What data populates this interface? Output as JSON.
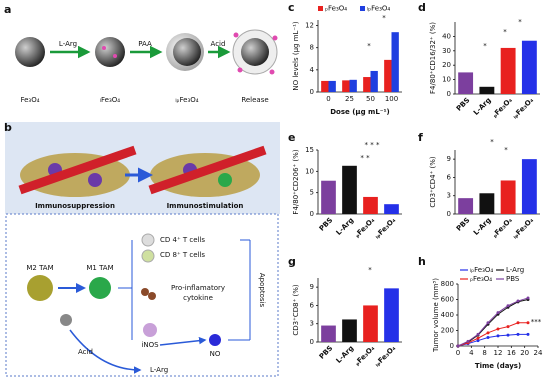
{
  "panel_labels": [
    "a",
    "b",
    "c",
    "d",
    "e",
    "f",
    "g",
    "h"
  ],
  "diagram_a": {
    "labels": [
      "Fe₃O₄",
      "ₗFe₃O₄",
      "ₗₚFe₃O₄",
      "Release"
    ],
    "steps": [
      "L-Arg",
      "PAA",
      "Acid"
    ]
  },
  "diagram_b": {
    "states": [
      "Immunosuppression",
      "Immunostimulation"
    ],
    "cells": [
      "M2 TAM",
      "M1 TAM"
    ],
    "tcells": [
      "CD 4⁺ T cells",
      "CD 8⁺ T cells"
    ],
    "cytokine": [
      "Pro-inflamatory",
      "cytokine"
    ],
    "enzyme": "iNOS",
    "acid": "Acid",
    "substrate": "L-Arg",
    "product": "NO",
    "outcome": "Apoptosis"
  },
  "chart_data": [
    {
      "type": "grouped-bar",
      "xlabel": "Dose (μg mL⁻¹)",
      "ylabel": "NO levels (μg mL⁻¹)",
      "categories": [
        "0",
        "25",
        "50",
        "100"
      ],
      "series": [
        {
          "name": "ₚFe₃O₄",
          "color": "#e8211f",
          "values": [
            2,
            2.1,
            2.7,
            5.8
          ]
        },
        {
          "name": "ₗₚFe₃O₄",
          "color": "#1f3fe0",
          "values": [
            2,
            2.2,
            3.8,
            10.8
          ]
        }
      ],
      "ylim": [
        0,
        13
      ],
      "yticks": [
        0,
        4,
        8,
        12
      ],
      "annotations": [
        "*",
        "*"
      ]
    },
    {
      "type": "bar",
      "ylabel": "F4/80⁺CD16/32⁺ (%)",
      "categories": [
        "PBS",
        "L-Arg",
        "ₚFe₃O₄",
        "ₗₚFe₃O₄"
      ],
      "colors": [
        "#7c3f9e",
        "#111111",
        "#e8211f",
        "#2430e8"
      ],
      "values": [
        15,
        5,
        32,
        37
      ],
      "ylim": [
        0,
        50
      ],
      "yticks": [
        0,
        10,
        20,
        30,
        40
      ],
      "annotations": [
        "*",
        "*",
        "*"
      ]
    },
    {
      "type": "bar",
      "ylabel": "F4/80⁺CD206⁺ (%)",
      "categories": [
        "PBS",
        "L-Arg",
        "ₚFe₃O₄",
        "ₗₚFe₃O₄"
      ],
      "colors": [
        "#7c3f9e",
        "#111111",
        "#e8211f",
        "#2430e8"
      ],
      "values": [
        7.8,
        11.3,
        4,
        2.3
      ],
      "ylim": [
        0,
        15
      ],
      "yticks": [
        0,
        5,
        10,
        15
      ],
      "annotations": [
        "* * *",
        "* *"
      ]
    },
    {
      "type": "bar",
      "ylabel": "CD3⁺CD4⁺ (%)",
      "categories": [
        "PBS",
        "L-Arg",
        "ₚFe₃O₄",
        "ₗₚFe₃O₄"
      ],
      "colors": [
        "#7c3f9e",
        "#111111",
        "#e8211f",
        "#2430e8"
      ],
      "values": [
        2.6,
        3.4,
        5.5,
        9
      ],
      "ylim": [
        0,
        10.5
      ],
      "yticks": [
        0,
        3,
        6,
        9
      ],
      "annotations": [
        "*",
        "*"
      ]
    },
    {
      "type": "bar",
      "ylabel": "CD3⁺CD8⁺ (%)",
      "categories": [
        "PBS",
        "L-Arg",
        "ₚFe₃O₄",
        "ₗₚFe₃O₄"
      ],
      "colors": [
        "#7c3f9e",
        "#111111",
        "#e8211f",
        "#2430e8"
      ],
      "values": [
        2.7,
        3.7,
        6,
        8.8
      ],
      "ylim": [
        0,
        10.5
      ],
      "yticks": [
        0,
        3,
        6,
        9
      ],
      "annotations": [
        "*"
      ]
    },
    {
      "type": "line",
      "xlabel": "Time (days)",
      "ylabel": "Tumor volume (mm³)",
      "x": [
        0,
        3,
        6,
        9,
        12,
        15,
        18,
        21
      ],
      "series": [
        {
          "name": "ₗₚFe₃O₄",
          "color": "#2430e8",
          "values": [
            0,
            30,
            70,
            110,
            130,
            140,
            150,
            150
          ]
        },
        {
          "name": "L-Arg",
          "color": "#111111",
          "values": [
            0,
            50,
            140,
            280,
            410,
            500,
            570,
            600
          ]
        },
        {
          "name": "ₚFe₃O₄",
          "color": "#e8211f",
          "values": [
            0,
            40,
            100,
            170,
            220,
            250,
            300,
            300
          ]
        },
        {
          "name": "PBS",
          "color": "#7c3f9e",
          "values": [
            0,
            60,
            150,
            300,
            430,
            520,
            580,
            620
          ]
        }
      ],
      "xlim": [
        0,
        24
      ],
      "xticks": [
        0,
        4,
        8,
        12,
        16,
        20,
        24
      ],
      "ylim": [
        0,
        800
      ],
      "yticks": [
        0,
        200,
        400,
        600,
        800
      ],
      "annotations": [
        "***"
      ]
    }
  ]
}
